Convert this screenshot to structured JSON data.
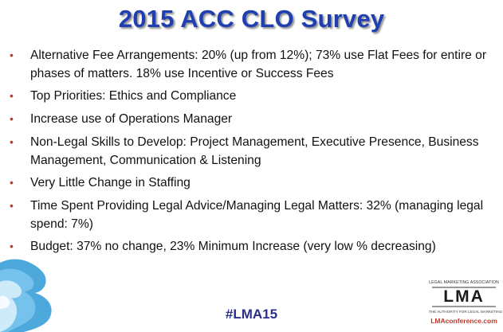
{
  "slide": {
    "title": "2015 ACC CLO Survey",
    "bullets": [
      {
        "marker": "•",
        "text": "Alternative Fee Arrangements: 20% (up from 12%); 73% use Flat Fees for entire or phases of matters. 18% use Incentive or Success Fees"
      },
      {
        "marker": "•",
        "text": "Top Priorities: Ethics and Compliance"
      },
      {
        "marker": "•",
        "text": "Increase use of Operations Manager"
      },
      {
        "marker": "•",
        "text": "Non-Legal Skills to Develop: Project Management, Executive Presence, Business Management, Communication & Listening"
      },
      {
        "marker": "•",
        "text": "Very Little Change in Staffing"
      },
      {
        "marker": "•",
        "text": "Time Spent Providing Legal Advice/Managing Legal Matters: 32% (managing legal spend: 7%)"
      },
      {
        "marker": "•",
        "text": "Budget: 37% no change, 23% Minimum Increase (very low % decreasing)"
      }
    ],
    "hashtag": "#LMA15"
  },
  "logo": {
    "top_text": "LEGAL MARKETING ASSOCIATION",
    "letters": "LMA",
    "tagline": "THE AUTHORITY FOR LEGAL MARKETING",
    "url": "LMAconference.com"
  },
  "colors": {
    "title": "#1f3fb0",
    "bullet_marker": "#c0392b",
    "hashtag": "#2b2f8a",
    "wave": "#3aa0d8"
  }
}
